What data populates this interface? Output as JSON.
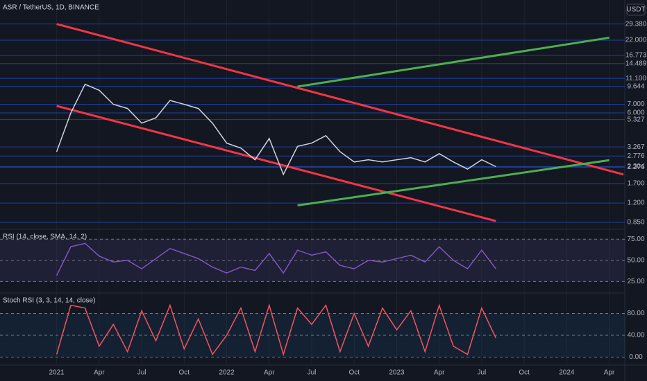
{
  "chart_data": [
    {
      "type": "line",
      "title": "ASR / TetherUS, 1D, BINANCE",
      "axis_label": "USDT",
      "log_scale": true,
      "color": "#d1d4dc",
      "x": [
        "2021-01",
        "2021-02",
        "2021-03",
        "2021-04",
        "2021-05",
        "2021-06",
        "2021-07",
        "2021-08",
        "2021-09",
        "2021-10",
        "2021-11",
        "2021-12",
        "2022-01",
        "2022-02",
        "2022-03",
        "2022-04",
        "2022-05",
        "2022-06",
        "2022-07",
        "2022-08",
        "2022-09",
        "2022-10",
        "2022-11",
        "2022-12",
        "2023-01",
        "2023-02",
        "2023-03",
        "2023-04",
        "2023-05",
        "2023-06",
        "2023-07",
        "2023-08"
      ],
      "values": [
        3.0,
        6.0,
        10.0,
        9.0,
        7.0,
        6.5,
        5.0,
        5.5,
        7.5,
        7.0,
        6.5,
        5.0,
        3.5,
        3.2,
        2.6,
        3.8,
        2.0,
        3.3,
        3.5,
        4.0,
        3.0,
        2.5,
        2.6,
        2.5,
        2.6,
        2.7,
        2.5,
        2.9,
        2.5,
        2.2,
        2.6,
        2.3
      ],
      "ylim": [
        0.76,
        44
      ],
      "yticks": [
        {
          "value": 29.38,
          "label": "29.380"
        },
        {
          "value": 22,
          "label": "22.000"
        },
        {
          "value": 16.773,
          "label": "16.773"
        },
        {
          "value": 14.489,
          "label": "14.489"
        },
        {
          "value": 11.1,
          "label": "11.100"
        },
        {
          "value": 9.644,
          "label": "9.644"
        },
        {
          "value": 7,
          "label": "7.000"
        },
        {
          "value": 6,
          "label": "6.000"
        },
        {
          "value": 5.327,
          "label": "5.327"
        },
        {
          "value": 3.267,
          "label": "3.267"
        },
        {
          "value": 2.776,
          "label": "2.776"
        },
        {
          "value": 2.304,
          "label": "2.304"
        },
        {
          "value": 2.276,
          "label": "2.276"
        },
        {
          "value": 1.7,
          "label": "1.700"
        },
        {
          "value": 1.2,
          "label": "1.200"
        },
        {
          "value": 0.85,
          "label": "0.850"
        }
      ],
      "grid": true,
      "lines": [
        {
          "color": "#f23645",
          "x": [
            "2021-01",
            "2024-05"
          ],
          "values": [
            29.38,
            2.0
          ]
        },
        {
          "color": "#f23645",
          "x": [
            "2021-01",
            "2023-08"
          ],
          "values": [
            6.8,
            0.87
          ]
        },
        {
          "color": "#4caf50",
          "x": [
            "2022-06",
            "2024-04"
          ],
          "values": [
            1.15,
            2.58
          ]
        },
        {
          "color": "#4caf50",
          "x": [
            "2022-06",
            "2024-04"
          ],
          "values": [
            9.6,
            23
          ]
        }
      ]
    },
    {
      "type": "line",
      "title": "RSI (14, close, SMA, 14, 2)",
      "color": "#7e57c2",
      "x": [
        "2021-01",
        "2021-02",
        "2021-03",
        "2021-04",
        "2021-05",
        "2021-06",
        "2021-07",
        "2021-08",
        "2021-09",
        "2021-10",
        "2021-11",
        "2021-12",
        "2022-01",
        "2022-02",
        "2022-03",
        "2022-04",
        "2022-05",
        "2022-06",
        "2022-07",
        "2022-08",
        "2022-09",
        "2022-10",
        "2022-11",
        "2022-12",
        "2023-01",
        "2023-02",
        "2023-03",
        "2023-04",
        "2023-05",
        "2023-06",
        "2023-07",
        "2023-08"
      ],
      "values": [
        32,
        66,
        70,
        55,
        48,
        50,
        40,
        52,
        64,
        58,
        52,
        42,
        35,
        42,
        38,
        58,
        35,
        62,
        56,
        60,
        44,
        40,
        50,
        48,
        52,
        56,
        48,
        66,
        50,
        40,
        62,
        40
      ],
      "ylim": [
        13,
        85
      ],
      "yticks": [
        {
          "value": 75,
          "label": "75.00"
        },
        {
          "value": 50,
          "label": "50.00"
        },
        {
          "value": 25,
          "label": "25.00"
        }
      ]
    },
    {
      "type": "line",
      "title": "Stoch RSI (3, 3, 14, 14, close)",
      "color": "#f7525f",
      "x": [
        "2021-01",
        "2021-02",
        "2021-03",
        "2021-04",
        "2021-05",
        "2021-06",
        "2021-07",
        "2021-08",
        "2021-09",
        "2021-10",
        "2021-11",
        "2021-12",
        "2022-01",
        "2022-02",
        "2022-03",
        "2022-04",
        "2022-05",
        "2022-06",
        "2022-07",
        "2022-08",
        "2022-09",
        "2022-10",
        "2022-11",
        "2022-12",
        "2023-01",
        "2023-02",
        "2023-03",
        "2023-04",
        "2023-05",
        "2023-06",
        "2023-07",
        "2023-08"
      ],
      "values": [
        5,
        95,
        90,
        20,
        60,
        10,
        85,
        30,
        95,
        15,
        70,
        5,
        40,
        90,
        10,
        95,
        5,
        90,
        60,
        95,
        10,
        80,
        20,
        90,
        50,
        85,
        10,
        95,
        20,
        5,
        90,
        35
      ],
      "ylim": [
        -12,
        115
      ],
      "yticks": [
        {
          "value": 80,
          "label": "80.00"
        },
        {
          "value": 40,
          "label": "40.00"
        },
        {
          "value": 0,
          "label": "0.00"
        }
      ],
      "xlim": [
        "2020-09",
        "2024-05"
      ],
      "xticks": [
        {
          "value": "2021-01",
          "label": "2021"
        },
        {
          "value": "2021-04",
          "label": "Apr"
        },
        {
          "value": "2021-07",
          "label": "Jul"
        },
        {
          "value": "2021-10",
          "label": "Oct"
        },
        {
          "value": "2022-01",
          "label": "2022"
        },
        {
          "value": "2022-04",
          "label": "Apr"
        },
        {
          "value": "2022-07",
          "label": "Jul"
        },
        {
          "value": "2022-10",
          "label": "Oct"
        },
        {
          "value": "2023-01",
          "label": "2023"
        },
        {
          "value": "2023-04",
          "label": "Apr"
        },
        {
          "value": "2023-07",
          "label": "Jul"
        },
        {
          "value": "2023-10",
          "label": "Oct"
        },
        {
          "value": "2024-01",
          "label": "2024"
        },
        {
          "value": "2024-04",
          "label": "Apr"
        }
      ]
    }
  ]
}
